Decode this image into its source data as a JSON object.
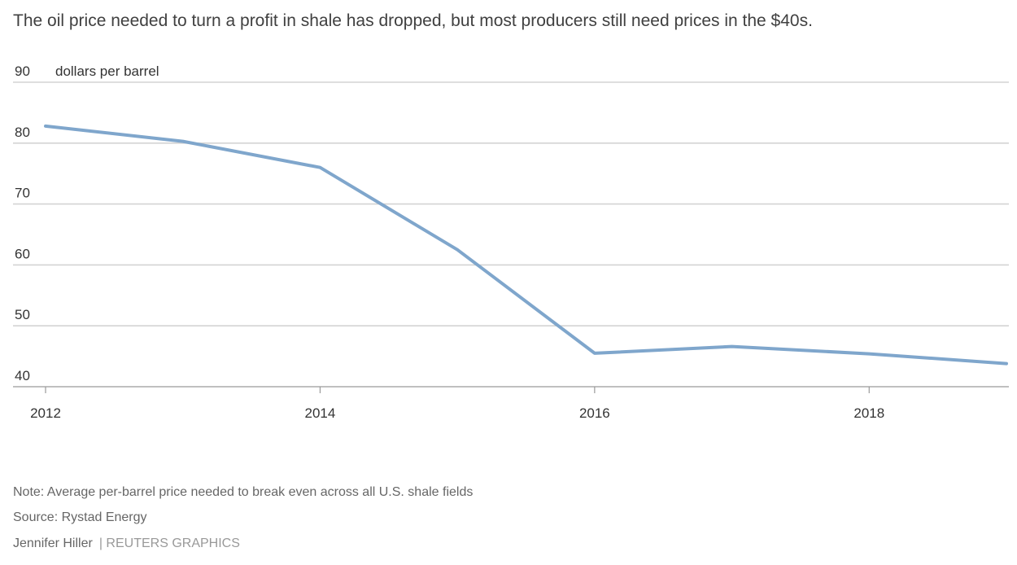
{
  "chart_data": {
    "type": "line",
    "title": "The oil price needed to turn a profit in shale has dropped, but most producers still need prices in the $40s.",
    "unit_label": "dollars per barrel",
    "ylim": [
      40,
      90
    ],
    "yticks": [
      40,
      50,
      60,
      70,
      80,
      90
    ],
    "xlim": [
      2012,
      2019
    ],
    "xticks": [
      "2012",
      "2014",
      "2016",
      "2018"
    ],
    "grid": true,
    "line_color": "#7fa6cc",
    "series": [
      {
        "x": [
          2012,
          2013,
          2014,
          2015,
          2016,
          2017,
          2018,
          2019
        ],
        "values": [
          82.8,
          80.3,
          76.0,
          62.5,
          45.5,
          46.6,
          45.4,
          43.8
        ]
      }
    ]
  },
  "footer": {
    "note": "Note: Average per-barrel price needed to break even across all U.S. shale fields",
    "source": "Source: Rystad Energy",
    "author": "Jennifer Hiller",
    "outlet": "| REUTERS GRAPHICS"
  }
}
